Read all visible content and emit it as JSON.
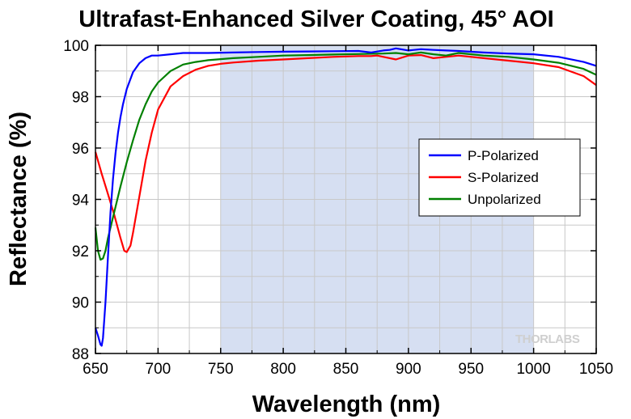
{
  "chart_data": {
    "type": "line",
    "title": "Ultrafast-Enhanced Silver Coating, 45° AOI",
    "xlabel": "Wavelength (nm)",
    "ylabel": "Reflectance (%)",
    "xlim": [
      650,
      1050
    ],
    "ylim": [
      88,
      100
    ],
    "xticks": [
      650,
      700,
      750,
      800,
      850,
      900,
      950,
      1000,
      1050
    ],
    "yticks": [
      88,
      90,
      92,
      94,
      96,
      98,
      100
    ],
    "grid": true,
    "legend_position": "right",
    "highlight_band": [
      750,
      1000
    ],
    "watermark": "THORLABS",
    "series": [
      {
        "name": "P-Polarized",
        "color": "#0000ff",
        "x": [
          650,
          652,
          654,
          655,
          656,
          658,
          660,
          662,
          664,
          666,
          668,
          670,
          672,
          675,
          680,
          685,
          690,
          695,
          700,
          710,
          720,
          740,
          760,
          780,
          800,
          820,
          840,
          860,
          870,
          880,
          885,
          890,
          900,
          910,
          920,
          930,
          940,
          960,
          980,
          1000,
          1020,
          1040,
          1050
        ],
        "y": [
          89.0,
          88.7,
          88.35,
          88.3,
          88.6,
          90.0,
          91.8,
          93.5,
          94.8,
          95.8,
          96.6,
          97.2,
          97.7,
          98.3,
          98.95,
          99.3,
          99.5,
          99.6,
          99.6,
          99.65,
          99.7,
          99.7,
          99.72,
          99.74,
          99.75,
          99.76,
          99.77,
          99.78,
          99.72,
          99.8,
          99.82,
          99.88,
          99.8,
          99.85,
          99.82,
          99.8,
          99.78,
          99.72,
          99.68,
          99.65,
          99.55,
          99.35,
          99.2
        ]
      },
      {
        "name": "S-Polarized",
        "color": "#ff0000",
        "x": [
          650,
          655,
          660,
          665,
          670,
          673,
          675,
          678,
          680,
          685,
          690,
          695,
          700,
          710,
          720,
          730,
          740,
          750,
          760,
          780,
          800,
          820,
          840,
          860,
          870,
          875,
          880,
          890,
          900,
          910,
          920,
          930,
          940,
          960,
          980,
          1000,
          1020,
          1040,
          1050
        ],
        "y": [
          95.85,
          95.0,
          94.2,
          93.4,
          92.5,
          92.0,
          91.95,
          92.2,
          92.7,
          94.1,
          95.5,
          96.6,
          97.5,
          98.4,
          98.8,
          99.05,
          99.2,
          99.28,
          99.33,
          99.4,
          99.45,
          99.5,
          99.55,
          99.58,
          99.58,
          99.6,
          99.55,
          99.45,
          99.6,
          99.62,
          99.5,
          99.55,
          99.6,
          99.5,
          99.4,
          99.3,
          99.15,
          98.8,
          98.45
        ]
      },
      {
        "name": "Unpolarized",
        "color": "#008000",
        "x": [
          650,
          652,
          654,
          656,
          658,
          660,
          662,
          665,
          670,
          675,
          680,
          685,
          690,
          695,
          700,
          710,
          720,
          730,
          740,
          760,
          780,
          800,
          820,
          840,
          860,
          880,
          890,
          900,
          910,
          920,
          930,
          940,
          960,
          980,
          1000,
          1020,
          1040,
          1050
        ],
        "y": [
          92.9,
          92.0,
          91.65,
          91.7,
          92.0,
          92.5,
          92.9,
          93.5,
          94.5,
          95.45,
          96.3,
          97.1,
          97.7,
          98.2,
          98.55,
          99.0,
          99.25,
          99.35,
          99.42,
          99.5,
          99.55,
          99.6,
          99.62,
          99.64,
          99.66,
          99.68,
          99.7,
          99.65,
          99.72,
          99.65,
          99.6,
          99.7,
          99.6,
          99.55,
          99.45,
          99.32,
          99.08,
          98.85
        ]
      }
    ]
  }
}
